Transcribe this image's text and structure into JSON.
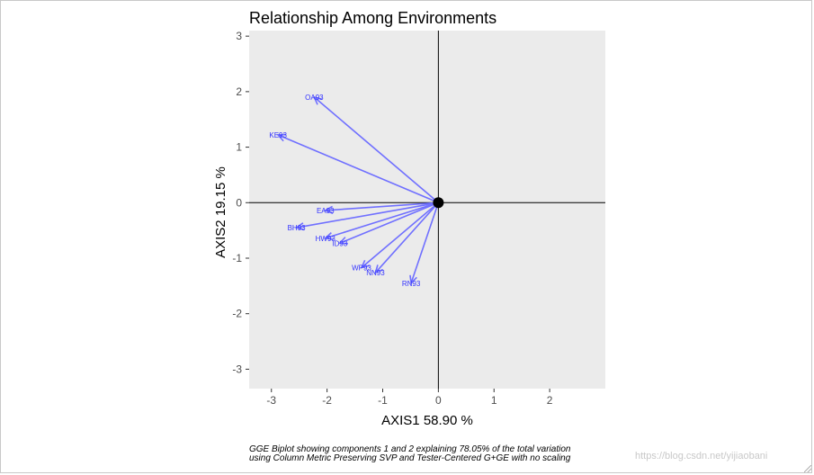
{
  "chart_data": {
    "type": "scatter",
    "title": "Relationship Among Environments",
    "xlabel": "AXIS1 58.90 %",
    "ylabel": "AXIS2 19.15 %",
    "xlim": [
      -3.4,
      3.0
    ],
    "ylim": [
      -3.35,
      3.1
    ],
    "xticks": [
      -3,
      -2,
      -1,
      0,
      1,
      2
    ],
    "yticks": [
      -3,
      -2,
      -1,
      0,
      1,
      2,
      3
    ],
    "xtick_labels": [
      "-3",
      "-2",
      "-1",
      "0",
      "1",
      "2"
    ],
    "ytick_labels": [
      "-3",
      "-2",
      "-1",
      "0",
      "1",
      "2",
      "3"
    ],
    "grid": false,
    "origin": [
      0,
      0
    ],
    "vectors": [
      {
        "label": "OA93",
        "x": -2.23,
        "y": 1.9
      },
      {
        "label": "KE93",
        "x": -2.88,
        "y": 1.22
      },
      {
        "label": "EA93",
        "x": -2.03,
        "y": -0.14
      },
      {
        "label": "BH93",
        "x": -2.55,
        "y": -0.45
      },
      {
        "label": "HW93",
        "x": -2.03,
        "y": -0.64
      },
      {
        "label": "ID93",
        "x": -1.77,
        "y": -0.73
      },
      {
        "label": "WP93",
        "x": -1.38,
        "y": -1.17
      },
      {
        "label": "NN93",
        "x": -1.13,
        "y": -1.26
      },
      {
        "label": "RN93",
        "x": -0.49,
        "y": -1.45
      }
    ],
    "colors": {
      "vector": "#7070ff",
      "label": "#3333ff",
      "panel": "#ebebeb",
      "origin_point": "#000000"
    }
  },
  "caption": {
    "line1": "GGE Biplot showing components 1 and 2 explaining 78.05% of the total variation",
    "line2": "using Column Metric Preserving SVP and Tester-Centered G+GE with no scaling"
  },
  "watermark": "https://blog.csdn.net/yijiaobani"
}
